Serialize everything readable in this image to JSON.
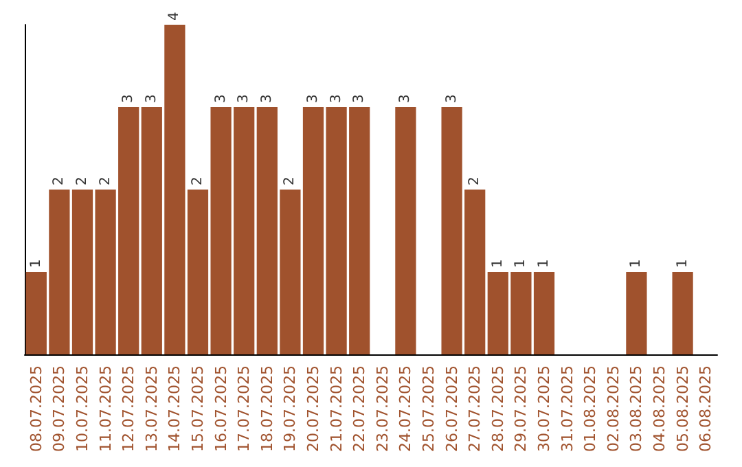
{
  "chart_data": {
    "type": "bar",
    "categories": [
      "08.07.2025",
      "09.07.2025",
      "10.07.2025",
      "11.07.2025",
      "12.07.2025",
      "13.07.2025",
      "14.07.2025",
      "15.07.2025",
      "16.07.2025",
      "17.07.2025",
      "18.07.2025",
      "19.07.2025",
      "20.07.2025",
      "21.07.2025",
      "22.07.2025",
      "23.07.2025",
      "24.07.2025",
      "25.07.2025",
      "26.07.2025",
      "27.07.2025",
      "28.07.2025",
      "29.07.2025",
      "30.07.2025",
      "31.07.2025",
      "01.08.2025",
      "02.08.2025",
      "03.08.2025",
      "04.08.2025",
      "05.08.2025",
      "06.08.2025"
    ],
    "values": [
      1,
      2,
      2,
      2,
      3,
      3,
      4,
      2,
      3,
      3,
      3,
      2,
      3,
      3,
      3,
      0,
      3,
      0,
      3,
      2,
      1,
      1,
      1,
      0,
      0,
      0,
      1,
      0,
      1,
      0
    ],
    "value_labels": [
      "1",
      "2",
      "2",
      "2",
      "3",
      "3",
      "4",
      "2",
      "3",
      "3",
      "3",
      "2",
      "3",
      "3",
      "3",
      null,
      "3",
      null,
      "3",
      "2",
      "1",
      "1",
      "1",
      null,
      null,
      null,
      "1",
      null,
      "1",
      null
    ],
    "color": "#a0522d",
    "tick_labels": "x"
  }
}
